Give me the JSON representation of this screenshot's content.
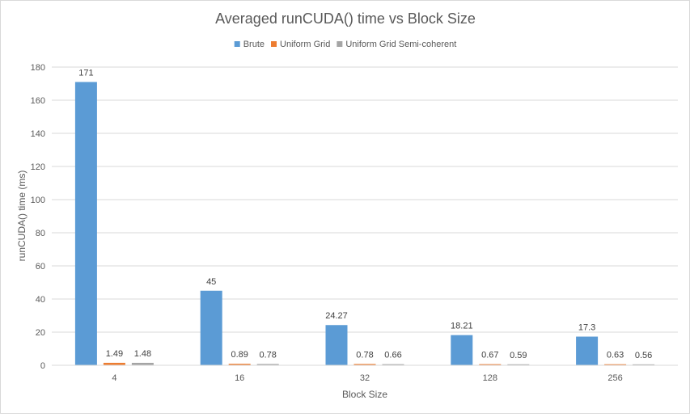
{
  "chart_data": {
    "type": "bar",
    "title": "Averaged runCUDA() time vs Block Size",
    "xlabel": "Block Size",
    "ylabel": "runCUDA() time (ms)",
    "categories": [
      "4",
      "16",
      "32",
      "128",
      "256"
    ],
    "series": [
      {
        "name": "Brute",
        "color": "#5b9bd5",
        "values": [
          171,
          45,
          24.27,
          18.21,
          17.3
        ]
      },
      {
        "name": "Uniform Grid",
        "color": "#ed7d31",
        "values": [
          1.49,
          0.89,
          0.78,
          0.67,
          0.63
        ]
      },
      {
        "name": "Uniform Grid Semi-coherent",
        "color": "#a5a5a5",
        "values": [
          1.48,
          0.78,
          0.66,
          0.59,
          0.56
        ]
      }
    ],
    "ylim": [
      0,
      180
    ],
    "yticks": [
      0,
      20,
      40,
      60,
      80,
      100,
      120,
      140,
      160,
      180
    ],
    "grid": true,
    "legend_position": "top-center",
    "data_labels": true
  }
}
